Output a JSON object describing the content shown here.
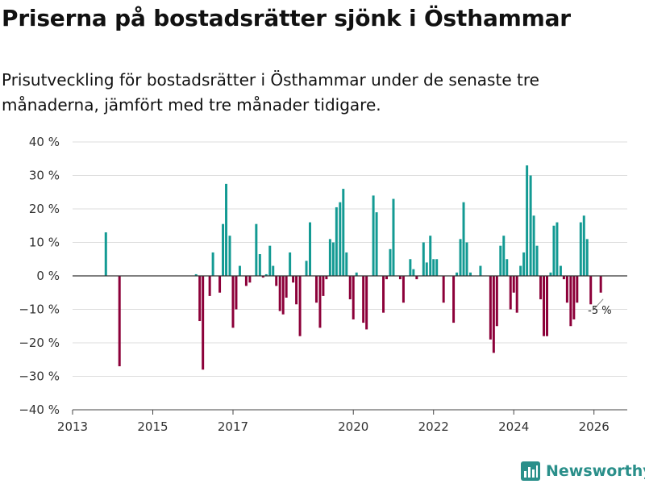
{
  "header": {
    "title": "Priserna på bostadsrätter sjönk i Östhammar",
    "subtitle": "Prisutveckling för bostadsrätter i Östhammar under de senaste tre månaderna, jämfört med tre månader tidigare."
  },
  "brand": {
    "name": "Newsworthy"
  },
  "colors": {
    "positive": "#139a93",
    "negative": "#8c0039",
    "grid": "#dddddd",
    "zero": "#333333",
    "brand": "#2a8f8a"
  },
  "chart_data": {
    "type": "bar",
    "title": "Priserna på bostadsrätter sjönk i Östhammar",
    "xlabel": "",
    "ylabel": "",
    "ylim": [
      -40,
      40
    ],
    "yticks": [
      40,
      30,
      20,
      10,
      0,
      -10,
      -20,
      -30,
      -40
    ],
    "ytick_labels": [
      "40 %",
      "30 %",
      "20 %",
      "10 %",
      "0 %",
      "−10 %",
      "−20 %",
      "−30 %",
      "−40 %"
    ],
    "xlim": [
      2013.0,
      2026.83
    ],
    "xticks": [
      2013,
      2015,
      2017,
      2020,
      2022,
      2024,
      2026
    ],
    "xtick_labels": [
      "2013",
      "2015",
      "2017",
      "2020",
      "2022",
      "2024",
      "2026"
    ],
    "bar_width_months": 0.6,
    "annotation": {
      "text": "-5 %",
      "x": 2026.17,
      "y": -5
    },
    "series": [
      {
        "name": "Prisutveckling",
        "points": [
          {
            "x": 2013.83,
            "y": 13
          },
          {
            "x": 2014.17,
            "y": -27
          },
          {
            "x": 2016.08,
            "y": 0.5
          },
          {
            "x": 2016.17,
            "y": -13.5
          },
          {
            "x": 2016.25,
            "y": -28
          },
          {
            "x": 2016.42,
            "y": -6
          },
          {
            "x": 2016.5,
            "y": 7
          },
          {
            "x": 2016.67,
            "y": -5
          },
          {
            "x": 2016.75,
            "y": 15.5
          },
          {
            "x": 2016.83,
            "y": 27.5
          },
          {
            "x": 2016.92,
            "y": 12
          },
          {
            "x": 2017.0,
            "y": -15.5
          },
          {
            "x": 2017.08,
            "y": -10
          },
          {
            "x": 2017.17,
            "y": 3
          },
          {
            "x": 2017.33,
            "y": -3
          },
          {
            "x": 2017.42,
            "y": -2
          },
          {
            "x": 2017.58,
            "y": 15.5
          },
          {
            "x": 2017.67,
            "y": 6.5
          },
          {
            "x": 2017.75,
            "y": -0.5
          },
          {
            "x": 2017.83,
            "y": 0.5
          },
          {
            "x": 2017.92,
            "y": 9
          },
          {
            "x": 2018.0,
            "y": 3
          },
          {
            "x": 2018.08,
            "y": -3
          },
          {
            "x": 2018.17,
            "y": -10.5
          },
          {
            "x": 2018.25,
            "y": -11.5
          },
          {
            "x": 2018.33,
            "y": -6.5
          },
          {
            "x": 2018.42,
            "y": 7
          },
          {
            "x": 2018.5,
            "y": -2
          },
          {
            "x": 2018.58,
            "y": -8.5
          },
          {
            "x": 2018.67,
            "y": -18
          },
          {
            "x": 2018.83,
            "y": 4.5
          },
          {
            "x": 2018.92,
            "y": 16
          },
          {
            "x": 2019.08,
            "y": -8
          },
          {
            "x": 2019.17,
            "y": -15.5
          },
          {
            "x": 2019.25,
            "y": -6
          },
          {
            "x": 2019.33,
            "y": -1
          },
          {
            "x": 2019.42,
            "y": 11
          },
          {
            "x": 2019.5,
            "y": 10
          },
          {
            "x": 2019.58,
            "y": 20.5
          },
          {
            "x": 2019.67,
            "y": 22
          },
          {
            "x": 2019.75,
            "y": 26
          },
          {
            "x": 2019.83,
            "y": 7
          },
          {
            "x": 2019.92,
            "y": -7
          },
          {
            "x": 2020.0,
            "y": -13
          },
          {
            "x": 2020.08,
            "y": 1
          },
          {
            "x": 2020.25,
            "y": -14
          },
          {
            "x": 2020.33,
            "y": -16
          },
          {
            "x": 2020.5,
            "y": 24
          },
          {
            "x": 2020.58,
            "y": 19
          },
          {
            "x": 2020.75,
            "y": -11
          },
          {
            "x": 2020.83,
            "y": -1
          },
          {
            "x": 2020.92,
            "y": 8
          },
          {
            "x": 2021.0,
            "y": 23
          },
          {
            "x": 2021.17,
            "y": -1
          },
          {
            "x": 2021.25,
            "y": -8
          },
          {
            "x": 2021.42,
            "y": 5
          },
          {
            "x": 2021.5,
            "y": 2
          },
          {
            "x": 2021.58,
            "y": -1
          },
          {
            "x": 2021.75,
            "y": 10
          },
          {
            "x": 2021.83,
            "y": 4
          },
          {
            "x": 2021.92,
            "y": 12
          },
          {
            "x": 2022.0,
            "y": 5
          },
          {
            "x": 2022.08,
            "y": 5
          },
          {
            "x": 2022.25,
            "y": -8
          },
          {
            "x": 2022.5,
            "y": -14
          },
          {
            "x": 2022.58,
            "y": 1
          },
          {
            "x": 2022.67,
            "y": 11
          },
          {
            "x": 2022.75,
            "y": 22
          },
          {
            "x": 2022.83,
            "y": 10
          },
          {
            "x": 2022.92,
            "y": 1
          },
          {
            "x": 2023.17,
            "y": 3
          },
          {
            "x": 2023.42,
            "y": -19
          },
          {
            "x": 2023.5,
            "y": -23
          },
          {
            "x": 2023.58,
            "y": -15
          },
          {
            "x": 2023.67,
            "y": 9
          },
          {
            "x": 2023.75,
            "y": 12
          },
          {
            "x": 2023.83,
            "y": 5
          },
          {
            "x": 2023.92,
            "y": -10
          },
          {
            "x": 2024.0,
            "y": -5
          },
          {
            "x": 2024.08,
            "y": -11
          },
          {
            "x": 2024.17,
            "y": 3
          },
          {
            "x": 2024.25,
            "y": 7
          },
          {
            "x": 2024.33,
            "y": 33
          },
          {
            "x": 2024.42,
            "y": 30
          },
          {
            "x": 2024.5,
            "y": 18
          },
          {
            "x": 2024.58,
            "y": 9
          },
          {
            "x": 2024.67,
            "y": -7
          },
          {
            "x": 2024.75,
            "y": -18
          },
          {
            "x": 2024.83,
            "y": -18
          },
          {
            "x": 2024.92,
            "y": 1
          },
          {
            "x": 2025.0,
            "y": 15
          },
          {
            "x": 2025.08,
            "y": 16
          },
          {
            "x": 2025.17,
            "y": 3
          },
          {
            "x": 2025.25,
            "y": -1
          },
          {
            "x": 2025.33,
            "y": -8
          },
          {
            "x": 2025.42,
            "y": -15
          },
          {
            "x": 2025.5,
            "y": -13
          },
          {
            "x": 2025.58,
            "y": -8
          },
          {
            "x": 2025.67,
            "y": 16
          },
          {
            "x": 2025.75,
            "y": 18
          },
          {
            "x": 2025.83,
            "y": 11
          },
          {
            "x": 2025.92,
            "y": -8.5
          },
          {
            "x": 2026.17,
            "y": -5
          }
        ]
      }
    ]
  }
}
